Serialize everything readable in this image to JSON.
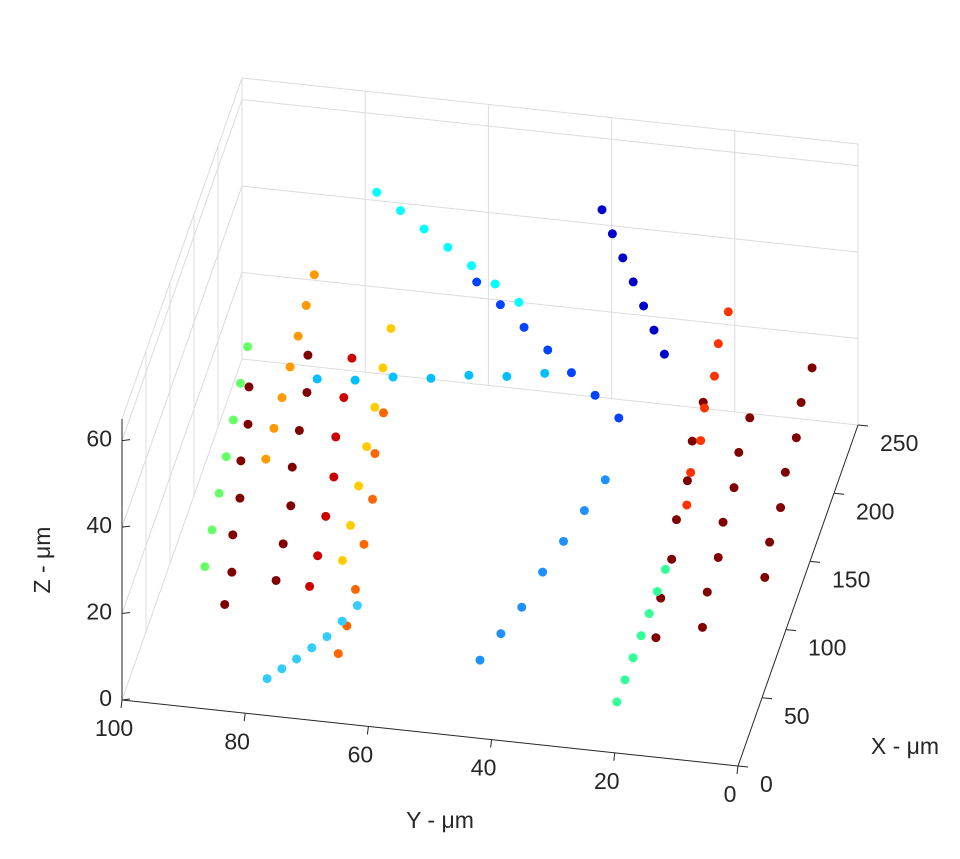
{
  "chart_data": {
    "type": "scatter3d",
    "xlabel": "X - μm",
    "ylabel": "Y - μm",
    "zlabel": "Z - μm",
    "xlim": [
      0,
      250
    ],
    "ylim": [
      0,
      100
    ],
    "zlim": [
      0,
      65
    ],
    "xticks": [
      0,
      50,
      100,
      150,
      200,
      250
    ],
    "yticks": [
      0,
      20,
      40,
      60,
      80,
      100
    ],
    "zticks": [
      0,
      20,
      40,
      60
    ],
    "grid": true,
    "series": [
      {
        "color": "#800000",
        "x": [
          60,
          62,
          64,
          66,
          68,
          70,
          72
        ],
        "y": [
          88,
          87,
          87,
          86,
          86,
          85,
          85
        ],
        "z": [
          5,
          12,
          20,
          28,
          36,
          44,
          52
        ]
      },
      {
        "color": "#800000",
        "x": [
          90,
          92,
          95,
          98,
          100,
          103,
          105
        ],
        "y": [
          82,
          81,
          80,
          80,
          79,
          78,
          78
        ],
        "z": [
          2,
          10,
          18,
          26,
          34,
          42,
          50
        ]
      },
      {
        "color": "#cc0000",
        "x": [
          70,
          74,
          78,
          82,
          86,
          90,
          94
        ],
        "y": [
          75,
          74,
          73,
          72,
          72,
          71,
          70
        ],
        "z": [
          8,
          14,
          22,
          30,
          38,
          46,
          54
        ]
      },
      {
        "color": "#ff6600",
        "x": [
          40,
          45,
          50,
          55,
          60,
          65,
          70
        ],
        "y": [
          68,
          67,
          66,
          65,
          64,
          64,
          63
        ],
        "z": [
          3,
          8,
          15,
          24,
          33,
          42,
          50
        ]
      },
      {
        "color": "#ffcc00",
        "x": [
          100,
          104,
          108,
          112,
          116,
          120,
          124
        ],
        "y": [
          72,
          71,
          70,
          69,
          68,
          67,
          66
        ],
        "z": [
          5,
          12,
          20,
          28,
          36,
          44,
          52
        ]
      },
      {
        "color": "#33ccff",
        "x": [
          20,
          25,
          30,
          36,
          42,
          48,
          54
        ],
        "y": [
          78,
          76,
          74,
          72,
          70,
          68,
          66
        ],
        "z": [
          2,
          3,
          4,
          5,
          6,
          8,
          10
        ]
      },
      {
        "color": "#00bfff",
        "x": [
          150,
          152,
          154,
          156,
          158,
          160,
          162
        ],
        "y": [
          80,
          74,
          68,
          62,
          56,
          50,
          44
        ],
        "z": [
          30,
          30,
          31,
          31,
          32,
          32,
          33
        ]
      },
      {
        "color": "#0044ff",
        "x": [
          200,
          198,
          196,
          194,
          192,
          190,
          188
        ],
        "y": [
          58,
          54,
          50,
          46,
          42,
          38,
          34
        ],
        "z": [
          40,
          36,
          32,
          28,
          24,
          20,
          16
        ]
      },
      {
        "color": "#0000cc",
        "x": [
          230,
          226,
          222,
          218,
          214,
          210,
          206
        ],
        "y": [
          40,
          38,
          36,
          34,
          32,
          30,
          28
        ],
        "z": [
          50,
          46,
          42,
          38,
          34,
          30,
          26
        ]
      },
      {
        "color": "#1e90ff",
        "x": [
          40,
          45,
          50,
          55,
          60,
          65,
          70
        ],
        "y": [
          45,
          42,
          39,
          36,
          33,
          30,
          27
        ],
        "z": [
          5,
          10,
          15,
          22,
          28,
          34,
          40
        ]
      },
      {
        "color": "#800000",
        "x": [
          80,
          90,
          100,
          110,
          120,
          130,
          140
        ],
        "y": [
          12,
          12,
          11,
          11,
          10,
          10,
          9
        ],
        "z": [
          5,
          10,
          15,
          20,
          25,
          30,
          35
        ]
      },
      {
        "color": "#800000",
        "x": [
          60,
          70,
          80,
          90,
          100,
          110,
          120
        ],
        "y": [
          18,
          18,
          17,
          17,
          16,
          16,
          15
        ],
        "z": [
          8,
          14,
          20,
          26,
          32,
          38,
          44
        ]
      },
      {
        "color": "#ff3300",
        "x": [
          150,
          158,
          166,
          174,
          182,
          190,
          198
        ],
        "y": [
          20,
          20,
          19,
          19,
          18,
          18,
          17
        ],
        "z": [
          10,
          15,
          20,
          25,
          30,
          35,
          40
        ]
      },
      {
        "color": "#33ff99",
        "x": [
          30,
          34,
          38,
          42,
          46,
          50,
          54
        ],
        "y": [
          22,
          21,
          20,
          19,
          18,
          17,
          16
        ],
        "z": [
          2,
          6,
          10,
          14,
          18,
          22,
          26
        ]
      },
      {
        "color": "#800000",
        "x": [
          120,
          130,
          140,
          150,
          160,
          170,
          180
        ],
        "y": [
          5,
          5,
          4,
          4,
          3,
          3,
          2
        ],
        "z": [
          5,
          10,
          15,
          20,
          25,
          30,
          35
        ]
      },
      {
        "color": "#66ff66",
        "x": [
          70,
          72,
          74,
          76,
          78,
          80,
          82
        ],
        "y": [
          92,
          91,
          90,
          89,
          88,
          87,
          86
        ],
        "z": [
          10,
          18,
          26,
          34,
          42,
          50,
          58
        ]
      },
      {
        "color": "#ff9900",
        "x": [
          120,
          124,
          128,
          132,
          136,
          140,
          144
        ],
        "y": [
          86,
          85,
          84,
          83,
          82,
          81,
          80
        ],
        "z": [
          20,
          26,
          32,
          38,
          44,
          50,
          56
        ]
      },
      {
        "color": "#00ffff",
        "x": [
          210,
          208,
          206,
          204,
          202,
          200,
          198
        ],
        "y": [
          75,
          71,
          67,
          63,
          59,
          55,
          51
        ],
        "z": [
          55,
          52,
          49,
          46,
          43,
          40,
          37
        ]
      }
    ]
  }
}
